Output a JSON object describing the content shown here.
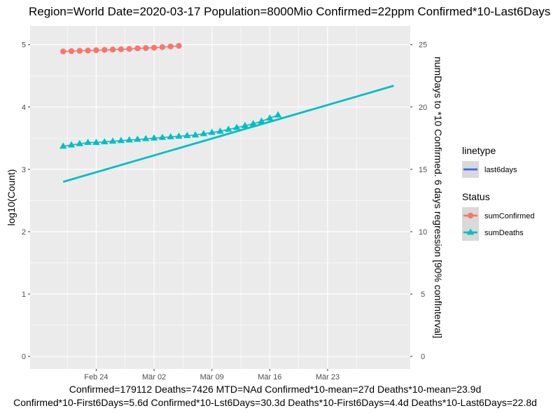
{
  "chart_data": {
    "type": "line",
    "title": "Region=World Date=2020-03-17  Population=8000Mio Confirmed=22ppm  Confirmed*10-Last6Days=30.3d",
    "ylabel": "log10(Count)",
    "y2label": "numDays to *10 Confirmed. 6 days regression [90% confInterval]",
    "caption_line1": "Confirmed=179112 Deaths=7426  MTD=NAd   Confirmed*10-mean=27d  Deaths*10-mean=23.9d",
    "caption_line2": "Confirmed*10-First6Days=5.6d  Confirmed*10-Lst6Days=30.3d    Deaths*10-First6Days=4.4d  Deaths*10-Last6Days=22.8d",
    "xlim": [
      "2020-02-16",
      "2020-04-02"
    ],
    "ylim": [
      -0.2,
      5.3
    ],
    "x_ticks": [
      {
        "date": "2020-02-24",
        "label": "Feb 24"
      },
      {
        "date": "2020-03-02",
        "label": "Mär 02"
      },
      {
        "date": "2020-03-09",
        "label": "Mär 09"
      },
      {
        "date": "2020-03-16",
        "label": "Mär 16"
      },
      {
        "date": "2020-03-23",
        "label": "Mär 23"
      }
    ],
    "y_ticks": [
      0,
      1,
      2,
      3,
      4,
      5
    ],
    "y2_ticks": [
      0,
      5,
      10,
      15,
      20,
      25
    ],
    "y2_to_y_scale": 5,
    "grid": true,
    "legend": {
      "position": "right",
      "groups": [
        {
          "title": "linetype",
          "entries": [
            {
              "label": "last6days",
              "color": "#3366FF",
              "shape": "line"
            }
          ]
        },
        {
          "title": "Status",
          "entries": [
            {
              "label": "sumConfirmed",
              "color": "#F8766D",
              "shape": "circle"
            },
            {
              "label": "sumDeaths",
              "color": "#00BFC4",
              "shape": "triangle"
            }
          ]
        }
      ]
    },
    "series": [
      {
        "name": "sumConfirmed",
        "color": "#F8766D",
        "marker": "circle",
        "points": [
          {
            "x": "2020-02-20",
            "y": 4.89
          },
          {
            "x": "2020-02-21",
            "y": 4.895
          },
          {
            "x": "2020-02-22",
            "y": 4.9
          },
          {
            "x": "2020-02-23",
            "y": 4.905
          },
          {
            "x": "2020-02-24",
            "y": 4.91
          },
          {
            "x": "2020-02-25",
            "y": 4.915
          },
          {
            "x": "2020-02-26",
            "y": 4.92
          },
          {
            "x": "2020-02-27",
            "y": 4.925
          },
          {
            "x": "2020-02-28",
            "y": 4.93
          },
          {
            "x": "2020-02-29",
            "y": 4.94
          },
          {
            "x": "2020-03-01",
            "y": 4.945
          },
          {
            "x": "2020-03-02",
            "y": 4.95
          },
          {
            "x": "2020-03-03",
            "y": 4.96
          },
          {
            "x": "2020-03-04",
            "y": 4.97
          },
          {
            "x": "2020-03-05",
            "y": 4.98
          }
        ]
      },
      {
        "name": "sumDeaths",
        "color": "#00BFC4",
        "marker": "triangle",
        "points": [
          {
            "x": "2020-02-20",
            "y": 3.37
          },
          {
            "x": "2020-02-21",
            "y": 3.39
          },
          {
            "x": "2020-02-22",
            "y": 3.41
          },
          {
            "x": "2020-02-23",
            "y": 3.43
          },
          {
            "x": "2020-02-24",
            "y": 3.43
          },
          {
            "x": "2020-02-25",
            "y": 3.44
          },
          {
            "x": "2020-02-26",
            "y": 3.45
          },
          {
            "x": "2020-02-27",
            "y": 3.46
          },
          {
            "x": "2020-02-28",
            "y": 3.47
          },
          {
            "x": "2020-02-29",
            "y": 3.48
          },
          {
            "x": "2020-03-01",
            "y": 3.49
          },
          {
            "x": "2020-03-02",
            "y": 3.5
          },
          {
            "x": "2020-03-03",
            "y": 3.51
          },
          {
            "x": "2020-03-04",
            "y": 3.52
          },
          {
            "x": "2020-03-05",
            "y": 3.53
          },
          {
            "x": "2020-03-06",
            "y": 3.54
          },
          {
            "x": "2020-03-07",
            "y": 3.55
          },
          {
            "x": "2020-03-08",
            "y": 3.57
          },
          {
            "x": "2020-03-09",
            "y": 3.59
          },
          {
            "x": "2020-03-10",
            "y": 3.61
          },
          {
            "x": "2020-03-11",
            "y": 3.64
          },
          {
            "x": "2020-03-12",
            "y": 3.67
          },
          {
            "x": "2020-03-13",
            "y": 3.7
          },
          {
            "x": "2020-03-14",
            "y": 3.73
          },
          {
            "x": "2020-03-15",
            "y": 3.77
          },
          {
            "x": "2020-03-16",
            "y": 3.82
          },
          {
            "x": "2020-03-17",
            "y": 3.87
          }
        ]
      },
      {
        "name": "regression",
        "color": "#00BFC4",
        "marker": "none",
        "points": [
          {
            "x": "2020-02-20",
            "y": 2.8
          },
          {
            "x": "2020-03-31",
            "y": 4.34
          }
        ]
      }
    ]
  }
}
